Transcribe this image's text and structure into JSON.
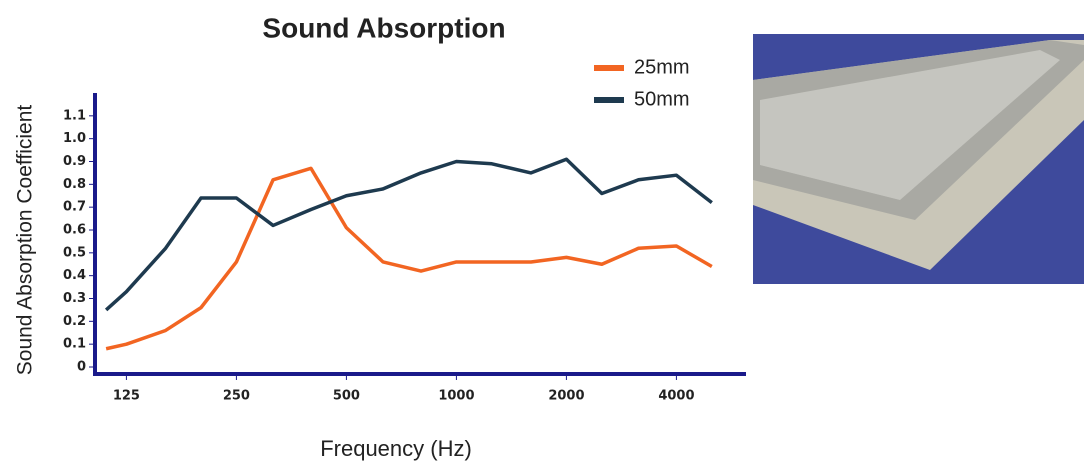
{
  "chart_data": {
    "type": "line",
    "title": "Sound Absorption",
    "x_label": "Frequency (Hz)",
    "y_label": "Sound Absorption Coefficient",
    "log_x": true,
    "x": [
      110,
      125,
      160,
      200,
      250,
      315,
      400,
      500,
      630,
      800,
      1000,
      1250,
      1600,
      2000,
      2500,
      3150,
      4000,
      5000
    ],
    "series": [
      {
        "name": "25mm",
        "color": "#f26522",
        "values": [
          0.08,
          0.1,
          0.16,
          0.26,
          0.46,
          0.82,
          0.87,
          0.61,
          0.46,
          0.42,
          0.46,
          0.46,
          0.46,
          0.48,
          0.45,
          0.52,
          0.53,
          0.44
        ]
      },
      {
        "name": "50mm",
        "color": "#1e3a4f",
        "values": [
          0.25,
          0.33,
          0.52,
          0.74,
          0.74,
          0.62,
          0.69,
          0.75,
          0.78,
          0.85,
          0.9,
          0.89,
          0.85,
          0.91,
          0.76,
          0.82,
          0.84,
          0.72
        ]
      }
    ],
    "xlim": [
      100,
      6400
    ],
    "xticks": [
      125,
      250,
      500,
      1000,
      2000,
      4000
    ],
    "ylim": [
      0,
      1.2
    ],
    "yticks": [
      0,
      0.1,
      0.2,
      0.3,
      0.4,
      0.5,
      0.6,
      0.7,
      0.8,
      0.9,
      {
        "value": 1,
        "label": "1.0"
      },
      1.1
    ],
    "axis_color": "#1a1a8a",
    "legend": "top-right"
  }
}
